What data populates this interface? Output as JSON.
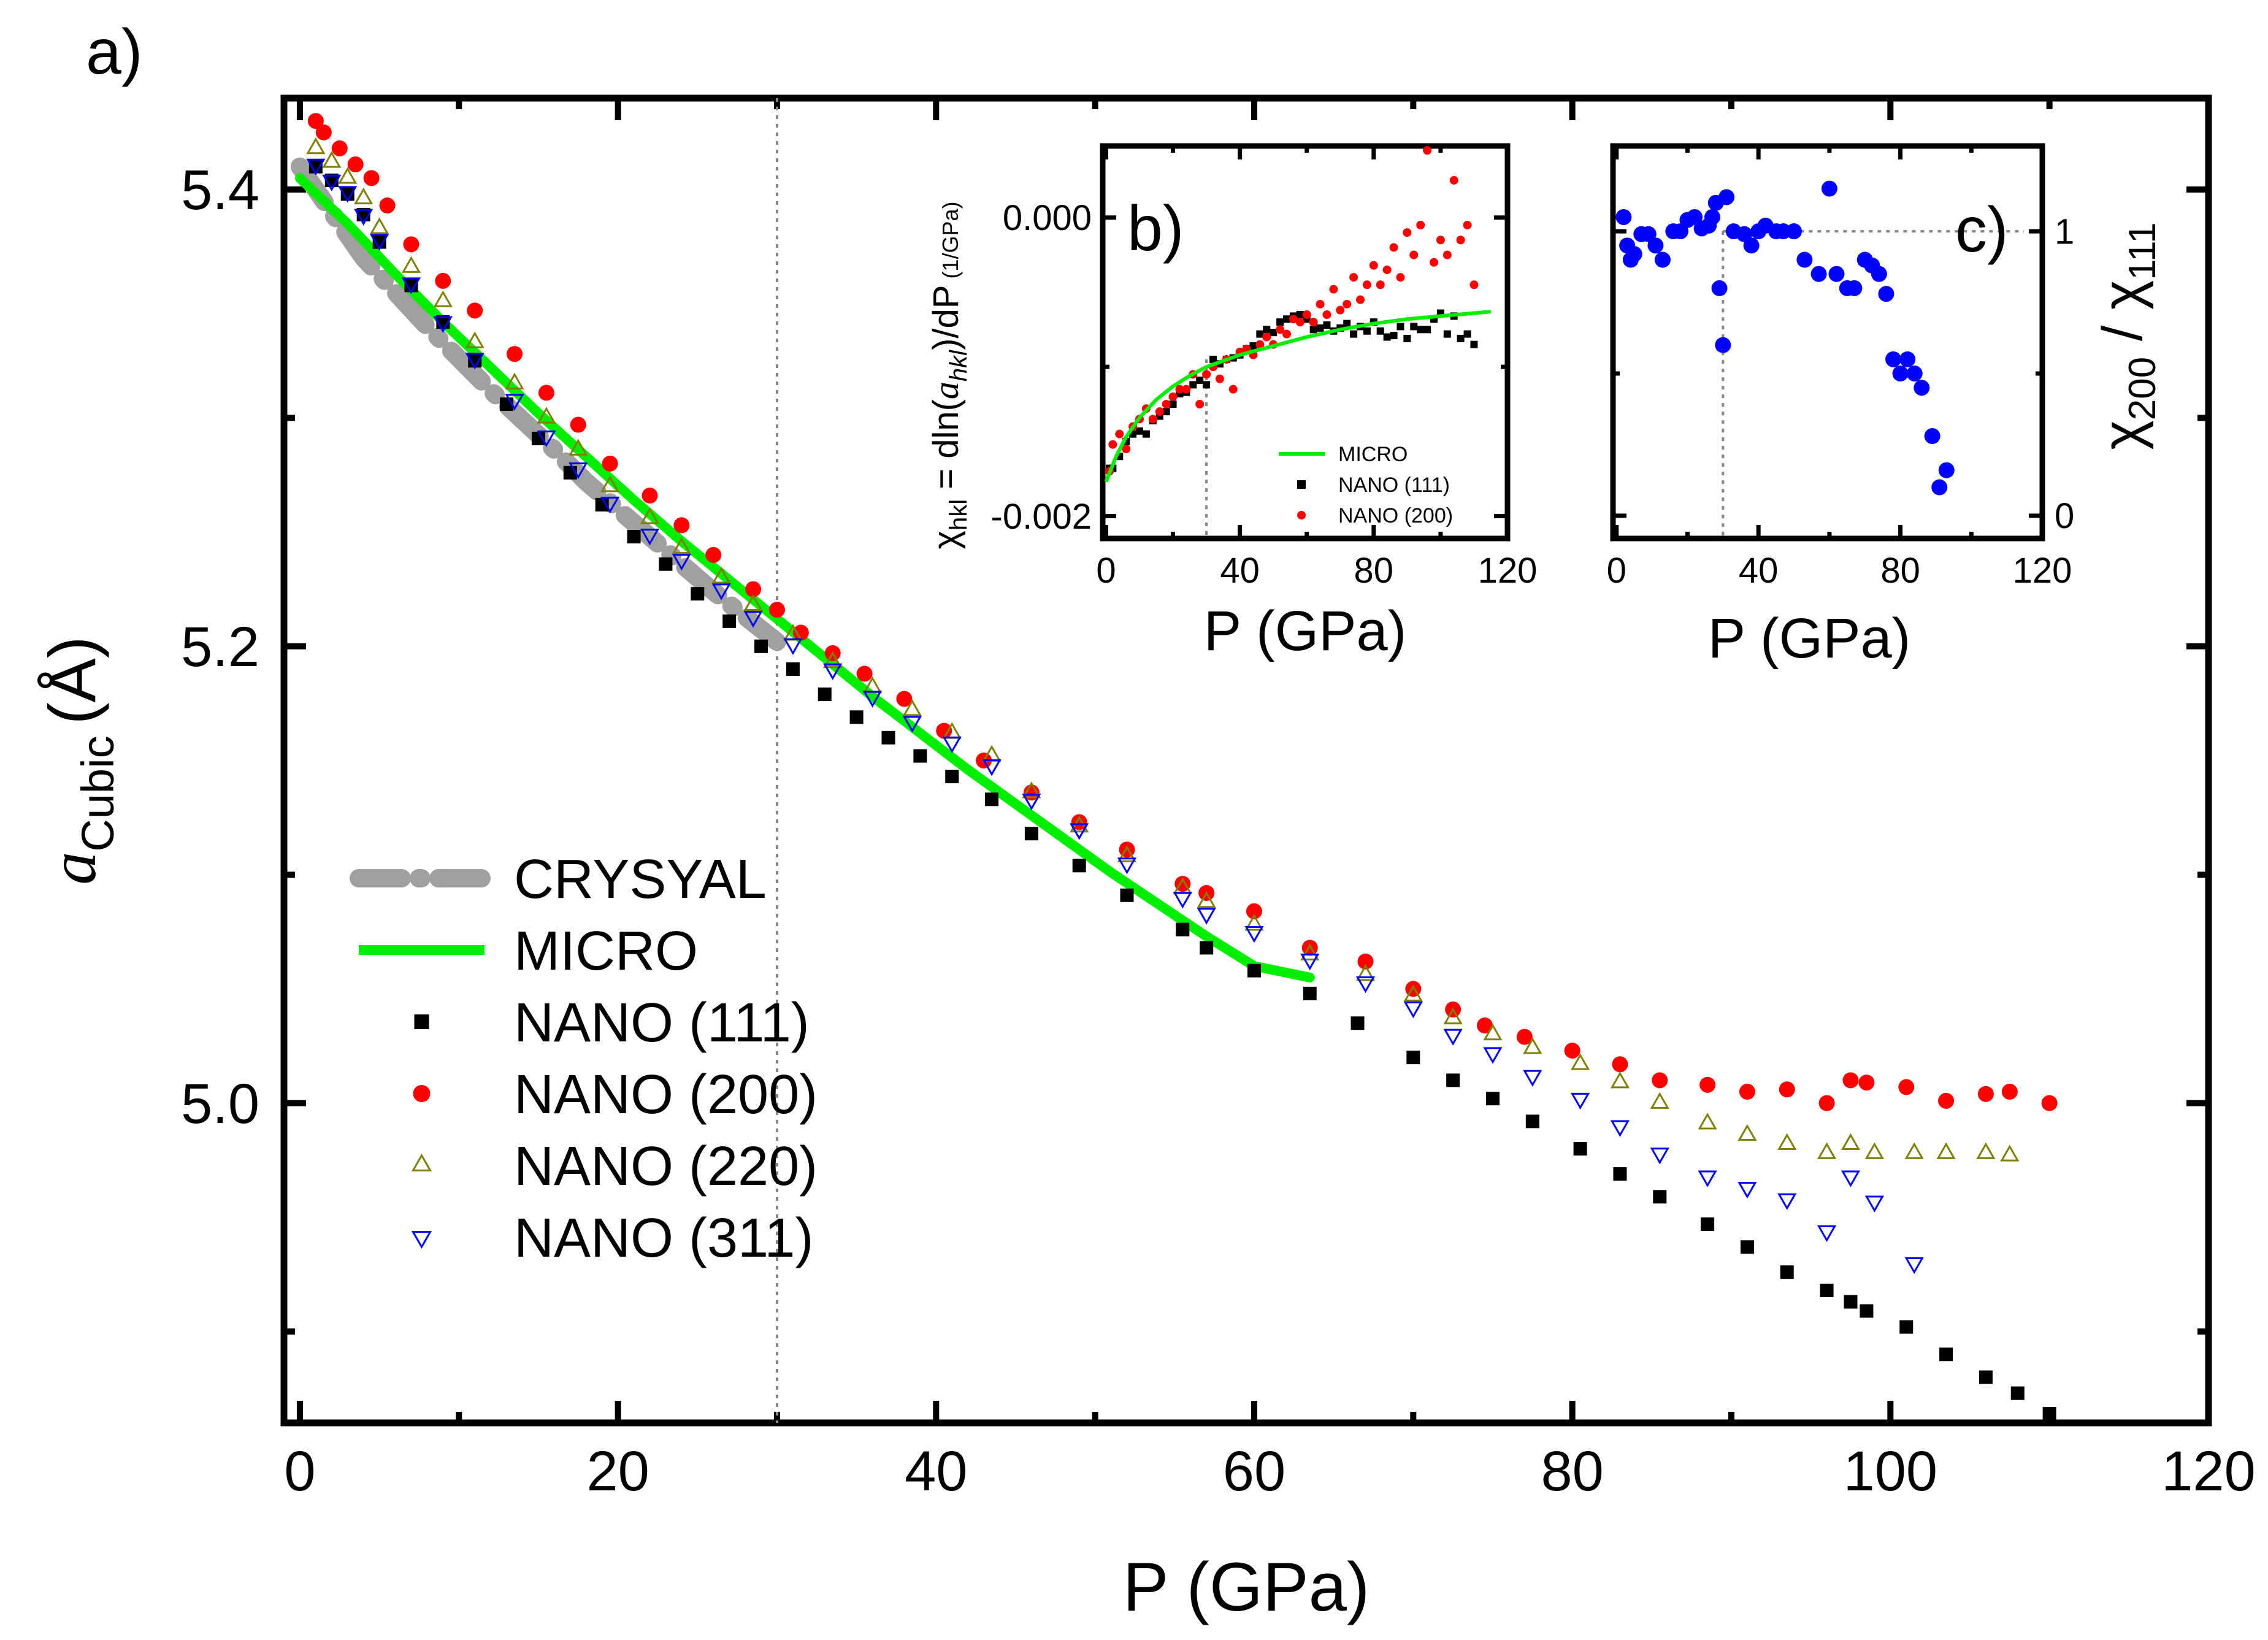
{
  "colors": {
    "nano111": "#000000",
    "nano200": "#ff0000",
    "nano220": "#808000",
    "nano311": "#0000ff",
    "micro": "#00ee00",
    "crysyal": "#a0a0a0",
    "chi_ratio": "#0000ff"
  },
  "chart_data": [
    {
      "panel": "a",
      "type": "scatter",
      "panel_label": "a)",
      "xlabel": "P (GPa)",
      "ylabel_symbol": "a",
      "ylabel_sub": "Cubic",
      "ylabel_unit": "(Å)",
      "xlim": [
        -1,
        120
      ],
      "ylim": [
        4.86,
        5.44
      ],
      "x_ticks": [
        0,
        20,
        40,
        60,
        80,
        100,
        120
      ],
      "y_ticks": [
        5.0,
        5.2,
        5.4
      ],
      "y_tick_labels": [
        "5.0",
        "5.2",
        "5.4"
      ],
      "y_minor_ticks": [
        4.9,
        5.1,
        5.3
      ],
      "vline_x": 30,
      "legend": [
        "CRYSYAL",
        "MICRO",
        "NANO (111)",
        "NANO (200)",
        "NANO (220)",
        "NANO (311)"
      ],
      "series": [
        {
          "name": "CRYSYAL",
          "style": "dashdot",
          "x": [
            0,
            2,
            4,
            6,
            8,
            10,
            12,
            14,
            16,
            18,
            20,
            22,
            24,
            26,
            28,
            30
          ],
          "y": [
            5.41,
            5.39,
            5.37,
            5.355,
            5.34,
            5.326,
            5.312,
            5.299,
            5.286,
            5.272,
            5.26,
            5.248,
            5.236,
            5.224,
            5.213,
            5.202
          ]
        },
        {
          "name": "MICRO",
          "style": "line",
          "x": [
            0,
            3,
            6,
            9,
            12,
            15,
            18,
            21,
            24,
            27,
            30,
            33,
            36,
            39,
            42,
            45,
            48,
            51,
            54,
            57,
            60,
            63.5
          ],
          "y": [
            5.405,
            5.385,
            5.363,
            5.342,
            5.322,
            5.302,
            5.283,
            5.264,
            5.246,
            5.229,
            5.212,
            5.195,
            5.178,
            5.162,
            5.146,
            5.131,
            5.116,
            5.101,
            5.087,
            5.073,
            5.06,
            5.055
          ]
        },
        {
          "name": "NANO (111)",
          "marker": "square",
          "x": [
            1,
            2,
            3,
            4,
            5,
            7,
            9,
            11,
            13,
            15,
            17,
            19,
            21,
            23,
            25,
            27,
            29,
            31,
            33,
            35,
            37,
            39,
            41,
            43.5,
            46,
            49,
            52,
            55.5,
            57,
            60,
            63.5,
            66.5,
            70,
            72.5,
            75,
            77.5,
            80.5,
            83,
            85.5,
            88.5,
            91,
            93.5,
            96,
            97.5,
            98.5,
            101,
            103.5,
            106,
            108,
            110
          ],
          "y": [
            5.41,
            5.404,
            5.398,
            5.389,
            5.377,
            5.358,
            5.342,
            5.325,
            5.306,
            5.291,
            5.276,
            5.262,
            5.248,
            5.236,
            5.223,
            5.211,
            5.2,
            5.19,
            5.179,
            5.169,
            5.16,
            5.152,
            5.143,
            5.133,
            5.118,
            5.104,
            5.091,
            5.076,
            5.068,
            5.058,
            5.048,
            5.035,
            5.02,
            5.01,
            5.002,
            4.992,
            4.98,
            4.969,
            4.959,
            4.947,
            4.937,
            4.926,
            4.918,
            4.913,
            4.909,
            4.902,
            4.89,
            4.88,
            4.873,
            4.864
          ]
        },
        {
          "name": "NANO (200)",
          "marker": "circle",
          "x": [
            1,
            1.5,
            2.5,
            3.5,
            4.5,
            5.5,
            7,
            9,
            11,
            13.5,
            15.5,
            17.5,
            19.5,
            22,
            24,
            26,
            28.5,
            30,
            31.5,
            33.5,
            35.5,
            38,
            40.5,
            43,
            46,
            49,
            52,
            55.5,
            57,
            60,
            63.5,
            67,
            70,
            72.5,
            74.5,
            77,
            80,
            83,
            85.5,
            88.5,
            91,
            93.5,
            96,
            97.5,
            98.5,
            101,
            103.5,
            106,
            107.5,
            110
          ],
          "y": [
            5.43,
            5.425,
            5.418,
            5.411,
            5.405,
            5.393,
            5.376,
            5.36,
            5.347,
            5.328,
            5.311,
            5.297,
            5.28,
            5.266,
            5.253,
            5.24,
            5.225,
            5.216,
            5.206,
            5.197,
            5.188,
            5.177,
            5.163,
            5.15,
            5.136,
            5.123,
            5.111,
            5.096,
            5.092,
            5.084,
            5.068,
            5.062,
            5.05,
            5.041,
            5.034,
            5.029,
            5.023,
            5.017,
            5.01,
            5.008,
            5.005,
            5.006,
            5.0,
            5.01,
            5.009,
            5.007,
            5.001,
            5.004,
            5.005,
            5.0
          ]
        },
        {
          "name": "NANO (220)",
          "marker": "triangle-up",
          "x": [
            1,
            2,
            3,
            4,
            5,
            7,
            9,
            11,
            13.5,
            15.5,
            17.5,
            19.5,
            22,
            24,
            26.5,
            28.5,
            31,
            33.5,
            36,
            38.5,
            41,
            43.5,
            46,
            49,
            52,
            55.5,
            57,
            60,
            63.5,
            67,
            70,
            72.5,
            75,
            77.5,
            80.5,
            83,
            85.5,
            88.5,
            91,
            93.5,
            96,
            97.5,
            99,
            101.5,
            103.5,
            106,
            107.5
          ],
          "y": [
            5.418,
            5.412,
            5.405,
            5.396,
            5.383,
            5.366,
            5.351,
            5.333,
            5.315,
            5.3,
            5.286,
            5.27,
            5.256,
            5.243,
            5.23,
            5.218,
            5.205,
            5.193,
            5.182,
            5.172,
            5.162,
            5.152,
            5.136,
            5.121,
            5.108,
            5.094,
            5.088,
            5.078,
            5.065,
            5.056,
            5.047,
            5.037,
            5.03,
            5.024,
            5.017,
            5.009,
            5.0,
            4.991,
            4.986,
            4.982,
            4.978,
            4.982,
            4.978,
            4.978,
            4.978,
            4.978,
            4.977
          ]
        },
        {
          "name": "NANO (311)",
          "marker": "triangle-down",
          "x": [
            1,
            2,
            3,
            4,
            5,
            7,
            9,
            11,
            13.5,
            15.5,
            17.5,
            19.5,
            22,
            24,
            26.5,
            28.5,
            31,
            33.5,
            36,
            38.5,
            41,
            43.5,
            46,
            49,
            52,
            55.5,
            57,
            60,
            63.5,
            67,
            70,
            72.5,
            75,
            77.5,
            80.5,
            83,
            85.5,
            88.5,
            91,
            93.5,
            96,
            97.5,
            99,
            101.5
          ],
          "y": [
            5.411,
            5.404,
            5.399,
            5.389,
            5.378,
            5.359,
            5.342,
            5.326,
            5.308,
            5.292,
            5.278,
            5.263,
            5.249,
            5.238,
            5.225,
            5.213,
            5.201,
            5.19,
            5.178,
            5.167,
            5.158,
            5.148,
            5.133,
            5.12,
            5.105,
            5.09,
            5.083,
            5.075,
            5.063,
            5.053,
            5.042,
            5.03,
            5.022,
            5.012,
            5.002,
            4.99,
            4.978,
            4.968,
            4.963,
            4.958,
            4.944,
            4.968,
            4.957,
            4.93
          ]
        }
      ]
    },
    {
      "panel": "b",
      "type": "scatter",
      "panel_label": "b)",
      "xlabel": "P (GPa)",
      "ylabel_main": "χ",
      "ylabel_sub": "hkl",
      "ylabel_rest1": " = dln(",
      "ylabel_ital": "a",
      "ylabel_sub2": "hkl",
      "ylabel_rest2": ")/dP",
      "ylabel_unit": " (1/GPa)",
      "xlim": [
        -1,
        120
      ],
      "ylim": [
        -0.00215,
        0.00048
      ],
      "x_ticks": [
        0,
        40,
        80,
        120
      ],
      "y_ticks": [
        0.0,
        -0.002
      ],
      "y_tick_labels": [
        "0.000",
        "-0.002"
      ],
      "y_minor_ticks": [
        -0.001
      ],
      "vline_x": 30,
      "legend": [
        "MICRO",
        "NANO (111)",
        "NANO (200)"
      ],
      "series": [
        {
          "name": "MICRO",
          "style": "line",
          "x": [
            0,
            3,
            6,
            10,
            15,
            20,
            25,
            30,
            35,
            40,
            50,
            60,
            70,
            80,
            90,
            100,
            110,
            115
          ],
          "y": [
            -0.00177,
            -0.0016,
            -0.00147,
            -0.00134,
            -0.00122,
            -0.00113,
            -0.00106,
            -0.001,
            -0.00096,
            -0.00092,
            -0.00086,
            -0.0008,
            -0.00075,
            -0.00071,
            -0.00068,
            -0.00066,
            -0.00064,
            -0.00063
          ]
        },
        {
          "name": "NANO (111)",
          "marker": "square",
          "x": [
            1,
            2,
            4,
            6,
            8,
            10,
            12,
            14,
            16,
            18,
            20,
            22,
            24,
            26,
            28,
            30,
            32,
            34,
            36,
            38,
            40,
            42,
            44,
            46,
            48,
            50,
            52,
            54,
            56,
            58,
            60,
            62,
            64,
            66,
            68,
            70,
            72,
            74,
            76,
            78,
            80,
            82,
            84,
            86,
            88,
            90,
            92,
            94,
            96,
            98,
            100,
            102,
            104,
            106,
            108,
            110
          ],
          "y": [
            -0.00168,
            -0.00168,
            -0.0016,
            -0.0015,
            -0.00145,
            -0.00143,
            -0.00145,
            -0.00136,
            -0.00133,
            -0.0013,
            -0.00125,
            -0.00118,
            -0.00117,
            -0.00112,
            -0.00109,
            -0.00112,
            -0.00095,
            -0.00098,
            -0.00095,
            -0.00094,
            -0.00092,
            -0.00088,
            -0.00086,
            -0.00078,
            -0.00075,
            -0.00077,
            -0.0007,
            -0.00068,
            -0.00066,
            -0.00065,
            -0.00068,
            -0.00075,
            -0.00074,
            -0.00072,
            -0.00076,
            -0.00074,
            -0.00071,
            -0.00078,
            -0.00073,
            -0.00076,
            -0.0007,
            -0.00076,
            -0.0008,
            -0.00079,
            -0.00073,
            -0.00081,
            -0.00073,
            -0.00075,
            -0.00075,
            -0.00068,
            -0.00064,
            -0.00078,
            -0.00066,
            -0.00081,
            -0.00078,
            -0.00085
          ]
        },
        {
          "name": "NANO (200)",
          "marker": "circle",
          "x": [
            1,
            2,
            4,
            6,
            8,
            10,
            12,
            14,
            16,
            18,
            20,
            22,
            24,
            26,
            28,
            30,
            32,
            34,
            36,
            38,
            40,
            42,
            44,
            46,
            48,
            50,
            52,
            54,
            56,
            58,
            60,
            62,
            64,
            66,
            68,
            70,
            72,
            74,
            76,
            78,
            80,
            82,
            84,
            86,
            88,
            90,
            92,
            94,
            96,
            98,
            100,
            102,
            104,
            106,
            108,
            110
          ],
          "y": [
            -0.0017,
            -0.00152,
            -0.00145,
            -0.00155,
            -0.0014,
            -0.00135,
            -0.00128,
            -0.00135,
            -0.0013,
            -0.00125,
            -0.0012,
            -0.00115,
            -0.00115,
            -0.00105,
            -0.00125,
            -0.00105,
            -0.001,
            -0.00108,
            -0.00095,
            -0.00115,
            -0.0009,
            -0.00088,
            -0.00092,
            -0.00085,
            -0.0008,
            -0.00085,
            -0.00075,
            -0.00078,
            -0.00068,
            -0.0007,
            -0.00065,
            -0.0007,
            -0.00058,
            -0.00065,
            -0.00048,
            -0.00062,
            -0.00058,
            -0.0004,
            -0.00055,
            -0.00045,
            -0.00032,
            -0.00045,
            -0.00035,
            -0.0002,
            -0.0004,
            -0.0001,
            -0.00025,
            -5e-05,
            0.00045,
            -0.0003,
            -0.00015,
            -0.00025,
            0.00025,
            -0.00015,
            -5e-05,
            -0.00045
          ]
        }
      ]
    },
    {
      "panel": "c",
      "type": "scatter",
      "panel_label": "c)",
      "xlabel": "P (GPa)",
      "ylabel_main": "χ",
      "ylabel_sub": "200",
      "ylabel_rest": " / χ",
      "ylabel_sub2": "111",
      "xlim": [
        -1,
        120
      ],
      "ylim": [
        -0.08,
        1.3
      ],
      "x_ticks": [
        0,
        40,
        80,
        120
      ],
      "y_ticks": [
        0,
        1
      ],
      "y_tick_labels": [
        "0",
        "1"
      ],
      "y_minor_ticks": [
        0.5
      ],
      "ref_x": 30,
      "ref_y": 1,
      "series": [
        {
          "name": "χ200/χ111",
          "marker": "circle",
          "x": [
            2,
            3,
            4,
            5,
            7,
            9,
            11,
            13,
            16,
            18,
            20,
            22,
            24,
            26,
            27,
            28,
            29,
            30,
            31,
            33,
            36,
            38,
            40,
            42,
            45,
            47,
            50,
            53,
            57,
            60,
            62,
            65,
            67,
            70,
            72,
            74,
            76,
            78,
            80,
            82,
            84,
            86,
            89,
            91,
            93
          ],
          "y": [
            1.05,
            0.95,
            0.9,
            0.92,
            0.99,
            0.99,
            0.95,
            0.9,
            1.0,
            1.0,
            1.04,
            1.05,
            1.01,
            1.02,
            1.05,
            1.1,
            0.8,
            0.6,
            1.12,
            1.0,
            0.99,
            0.95,
            1.0,
            1.02,
            1.0,
            1.0,
            1.0,
            0.9,
            0.85,
            1.15,
            0.85,
            0.8,
            0.8,
            0.9,
            0.88,
            0.85,
            0.78,
            0.55,
            0.5,
            0.55,
            0.5,
            0.45,
            0.28,
            0.1,
            0.16
          ]
        }
      ]
    }
  ]
}
